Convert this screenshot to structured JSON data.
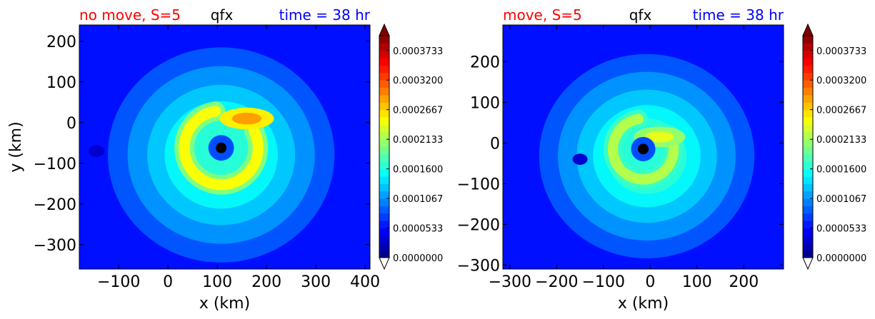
{
  "chart_data": [
    {
      "type": "contour",
      "title_left": "no move, S=5",
      "title_center": "qfx",
      "title_right": "time = 38 hr",
      "xlabel": "x (km)",
      "ylabel": "y (km)",
      "xlim": [
        -180,
        410
      ],
      "ylim": [
        -360,
        240
      ],
      "xticks": [
        -100,
        0,
        100,
        200,
        300,
        400
      ],
      "xtick_labels": [
        "−100",
        "0",
        "100",
        "200",
        "300",
        "400"
      ],
      "yticks": [
        200,
        100,
        0,
        -100,
        -200,
        -300
      ],
      "ytick_labels": [
        "200",
        "100",
        "0",
        "−100",
        "−200",
        "−300"
      ],
      "center_marker": {
        "x": 108,
        "y": -62
      },
      "field_features": [
        {
          "kind": "curved band",
          "level_fraction": 0.62,
          "around": [
            108,
            -62
          ]
        },
        {
          "kind": "blob",
          "x": 160,
          "y": 10,
          "level_fraction": 0.72
        },
        {
          "kind": "low spot",
          "x": -145,
          "y": -70,
          "level_fraction": 0.08
        }
      ],
      "colorbar": {
        "vmin": 0.0,
        "vmax": 0.0004,
        "levels": 30,
        "extend": "both",
        "colormap": "jet",
        "tick_values": [
          0.0,
          5.33e-05,
          0.0001067,
          0.00016,
          0.0002133,
          0.0002667,
          0.00032,
          0.0003733
        ],
        "tick_labels": [
          "0.0000000",
          "0.0000533",
          "0.0001067",
          "0.0001600",
          "0.0002133",
          "0.0002667",
          "0.0003200",
          "0.0003733"
        ]
      }
    },
    {
      "type": "contour",
      "title_left": "move, S=5",
      "title_center": "qfx",
      "title_right": "time = 38 hr",
      "xlabel": "x (km)",
      "ylabel": "",
      "xlim": [
        -315,
        285
      ],
      "ylim": [
        -310,
        290
      ],
      "xticks": [
        -300,
        -200,
        -100,
        0,
        100,
        200
      ],
      "xtick_labels": [
        "−300",
        "−200",
        "−100",
        "0",
        "100",
        "200"
      ],
      "yticks": [
        200,
        100,
        0,
        -100,
        -200,
        -300
      ],
      "ytick_labels": [
        "200",
        "100",
        "0",
        "−100",
        "−200",
        "−300"
      ],
      "center_marker": {
        "x": -15,
        "y": -15
      },
      "field_features": [
        {
          "kind": "curved band",
          "level_fraction": 0.55,
          "around": [
            -15,
            -15
          ]
        },
        {
          "kind": "blob",
          "x": 20,
          "y": 15,
          "level_fraction": 0.6
        },
        {
          "kind": "low spot",
          "x": -150,
          "y": -40,
          "level_fraction": 0.08
        }
      ],
      "colorbar": {
        "vmin": 0.0,
        "vmax": 0.0004,
        "levels": 30,
        "extend": "both",
        "colormap": "jet",
        "tick_values": [
          0.0,
          5.33e-05,
          0.0001067,
          0.00016,
          0.0002133,
          0.0002667,
          0.00032,
          0.0003733
        ],
        "tick_labels": [
          "0.0000000",
          "0.0000533",
          "0.0001067",
          "0.0001600",
          "0.0002133",
          "0.0002667",
          "0.0003200",
          "0.0003733"
        ]
      }
    }
  ],
  "colors": {
    "title_left": "#ff0000",
    "title_center": "#000000",
    "title_right": "#0000ff",
    "marker": "#000000",
    "base_field": "#0a3cf5"
  }
}
